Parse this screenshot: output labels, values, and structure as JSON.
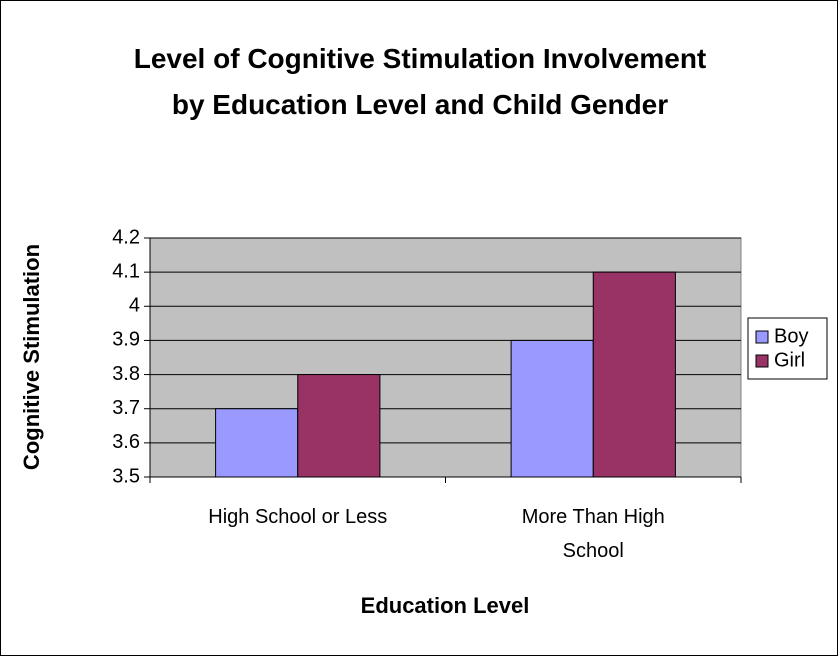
{
  "chart_data": {
    "type": "bar",
    "title": "Level of Cognitive Stimulation Involvement by Education Level and Child Gender",
    "x_label": "Education Level",
    "y_label": "Cognitive Stimulation",
    "categories": [
      "High School or Less",
      "More Than High School"
    ],
    "series": [
      {
        "name": "Boy",
        "color": "#9999ff",
        "values": [
          3.7,
          3.9
        ]
      },
      {
        "name": "Girl",
        "color": "#993366",
        "values": [
          3.8,
          4.1
        ]
      }
    ],
    "ylim": [
      3.5,
      4.2
    ],
    "yticks": [
      3.5,
      3.6,
      3.7,
      3.8,
      3.9,
      4,
      4.1,
      4.2
    ],
    "grid": true,
    "legend": "right"
  }
}
